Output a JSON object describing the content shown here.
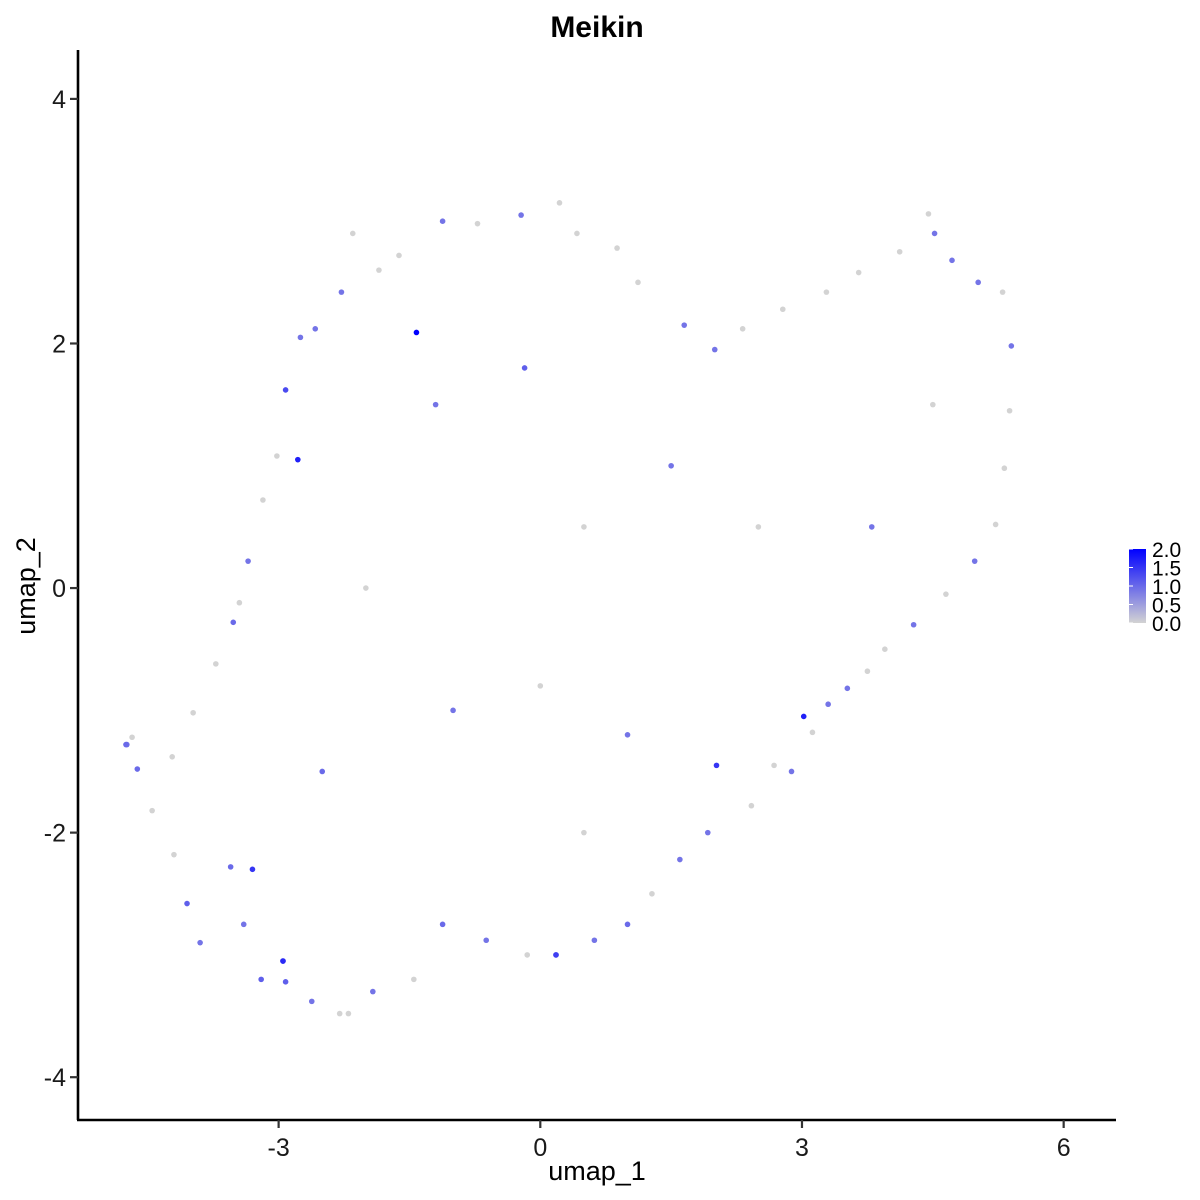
{
  "chart_data": {
    "type": "scatter",
    "title": "Meikin",
    "xlabel": "umap_1",
    "ylabel": "umap_2",
    "xlim": [
      -5.3,
      6.6
    ],
    "ylim": [
      -4.35,
      4.4
    ],
    "x_ticks": [
      -3,
      0,
      3,
      6
    ],
    "x_tick_labels": [
      "-3",
      "0",
      "3",
      "6"
    ],
    "y_ticks": [
      -4,
      -2,
      0,
      2,
      4
    ],
    "y_tick_labels": [
      "-4",
      "-2",
      "0",
      "2",
      "4"
    ],
    "grid": false,
    "color_scale": {
      "low_color": "#d3d3d3",
      "high_color": "#0000ff",
      "min": 0.0,
      "max": 2.0,
      "legend_placement": "right",
      "legend_ticks": [
        2.0,
        1.5,
        1.0,
        0.5,
        0.0
      ],
      "legend_tick_labels": [
        "2.0",
        "1.5",
        "1.0",
        "0.5",
        "0.0"
      ]
    },
    "points": [
      {
        "x": -4.74,
        "y": -1.28,
        "v": 0.9
      },
      {
        "x": -4.68,
        "y": -1.22,
        "v": 0.0
      },
      {
        "x": -4.62,
        "y": -1.48,
        "v": 1.0
      },
      {
        "x": -4.45,
        "y": -1.82,
        "v": 0.0
      },
      {
        "x": -4.2,
        "y": -2.18,
        "v": 0.0
      },
      {
        "x": -4.05,
        "y": -2.58,
        "v": 1.1
      },
      {
        "x": -3.9,
        "y": -2.9,
        "v": 0.9
      },
      {
        "x": -3.55,
        "y": -2.28,
        "v": 1.0
      },
      {
        "x": -3.4,
        "y": -2.75,
        "v": 0.9
      },
      {
        "x": -3.2,
        "y": -3.2,
        "v": 1.1
      },
      {
        "x": -2.95,
        "y": -3.05,
        "v": 1.3
      },
      {
        "x": -2.92,
        "y": -3.22,
        "v": 1.1
      },
      {
        "x": -2.62,
        "y": -3.38,
        "v": 0.9
      },
      {
        "x": -2.3,
        "y": -3.48,
        "v": 0.0
      },
      {
        "x": -2.2,
        "y": -3.48,
        "v": 0.0
      },
      {
        "x": -1.92,
        "y": -3.3,
        "v": 0.9
      },
      {
        "x": -1.45,
        "y": -3.2,
        "v": 0.0
      },
      {
        "x": -1.12,
        "y": -2.75,
        "v": 1.0
      },
      {
        "x": -0.62,
        "y": -2.88,
        "v": 0.9
      },
      {
        "x": -0.15,
        "y": -3.0,
        "v": 0.0
      },
      {
        "x": 0.18,
        "y": -3.0,
        "v": 1.1
      },
      {
        "x": 0.62,
        "y": -2.88,
        "v": 0.9
      },
      {
        "x": 1.0,
        "y": -2.75,
        "v": 1.0
      },
      {
        "x": 1.28,
        "y": -2.5,
        "v": 0.0
      },
      {
        "x": 1.6,
        "y": -2.22,
        "v": 0.9
      },
      {
        "x": 1.92,
        "y": -2.0,
        "v": 0.9
      },
      {
        "x": 2.42,
        "y": -1.78,
        "v": 0.0
      },
      {
        "x": 2.68,
        "y": -1.45,
        "v": 0.0
      },
      {
        "x": 2.88,
        "y": -1.5,
        "v": 0.9
      },
      {
        "x": 3.12,
        "y": -1.18,
        "v": 0.0
      },
      {
        "x": 3.3,
        "y": -0.95,
        "v": 0.9
      },
      {
        "x": 3.52,
        "y": -0.82,
        "v": 0.9
      },
      {
        "x": 3.75,
        "y": -0.68,
        "v": 0.0
      },
      {
        "x": 3.95,
        "y": -0.5,
        "v": 0.0
      },
      {
        "x": 4.28,
        "y": -0.3,
        "v": 0.9
      },
      {
        "x": 4.65,
        "y": -0.05,
        "v": 0.0
      },
      {
        "x": 4.98,
        "y": 0.22,
        "v": 0.9
      },
      {
        "x": 5.22,
        "y": 0.52,
        "v": 0.0
      },
      {
        "x": 5.32,
        "y": 0.98,
        "v": 0.0
      },
      {
        "x": 5.38,
        "y": 1.45,
        "v": 0.0
      },
      {
        "x": 5.4,
        "y": 1.98,
        "v": 0.9
      },
      {
        "x": 5.3,
        "y": 2.42,
        "v": 0.0
      },
      {
        "x": 5.02,
        "y": 2.5,
        "v": 0.9
      },
      {
        "x": 4.72,
        "y": 2.68,
        "v": 0.9
      },
      {
        "x": 4.52,
        "y": 2.9,
        "v": 0.9
      },
      {
        "x": 4.45,
        "y": 3.06,
        "v": 0.0
      },
      {
        "x": 4.12,
        "y": 2.75,
        "v": 0.0
      },
      {
        "x": 3.65,
        "y": 2.58,
        "v": 0.0
      },
      {
        "x": 3.28,
        "y": 2.42,
        "v": 0.0
      },
      {
        "x": 2.78,
        "y": 2.28,
        "v": 0.0
      },
      {
        "x": 2.32,
        "y": 2.12,
        "v": 0.0
      },
      {
        "x": 1.65,
        "y": 2.15,
        "v": 0.9
      },
      {
        "x": 1.12,
        "y": 2.5,
        "v": 0.0
      },
      {
        "x": 0.88,
        "y": 2.78,
        "v": 0.0
      },
      {
        "x": 0.42,
        "y": 2.9,
        "v": 0.0
      },
      {
        "x": 0.22,
        "y": 3.15,
        "v": 0.0
      },
      {
        "x": -0.22,
        "y": 3.05,
        "v": 0.9
      },
      {
        "x": -0.72,
        "y": 2.98,
        "v": 0.0
      },
      {
        "x": -1.12,
        "y": 3.0,
        "v": 0.9
      },
      {
        "x": -1.62,
        "y": 2.72,
        "v": 0.0
      },
      {
        "x": -1.85,
        "y": 2.6,
        "v": 0.0
      },
      {
        "x": -2.15,
        "y": 2.9,
        "v": 0.0
      },
      {
        "x": -2.28,
        "y": 2.42,
        "v": 0.9
      },
      {
        "x": -2.58,
        "y": 2.12,
        "v": 0.9
      },
      {
        "x": -2.75,
        "y": 2.05,
        "v": 0.9
      },
      {
        "x": -2.92,
        "y": 1.62,
        "v": 1.3
      },
      {
        "x": -3.02,
        "y": 1.08,
        "v": 0.0
      },
      {
        "x": -3.18,
        "y": 0.72,
        "v": 0.0
      },
      {
        "x": -3.35,
        "y": 0.22,
        "v": 0.9
      },
      {
        "x": -3.45,
        "y": -0.12,
        "v": 0.0
      },
      {
        "x": -3.52,
        "y": -0.28,
        "v": 1.0
      },
      {
        "x": -3.72,
        "y": -0.62,
        "v": 0.0
      },
      {
        "x": -3.98,
        "y": -1.02,
        "v": 0.0
      },
      {
        "x": -4.22,
        "y": -1.38,
        "v": 0.0
      },
      {
        "x": -1.42,
        "y": 2.09,
        "v": 2.0
      },
      {
        "x": -2.78,
        "y": 1.05,
        "v": 1.7
      },
      {
        "x": -0.18,
        "y": 1.8,
        "v": 1.1
      },
      {
        "x": 3.02,
        "y": -1.05,
        "v": 1.7
      },
      {
        "x": 2.02,
        "y": -1.45,
        "v": 1.5
      },
      {
        "x": 0.18,
        "y": -3.0,
        "v": 1.4
      },
      {
        "x": -3.3,
        "y": -2.3,
        "v": 1.5
      },
      {
        "x": -2.95,
        "y": -3.05,
        "v": 1.6
      },
      {
        "x": -4.75,
        "y": -1.28,
        "v": 1.0
      },
      {
        "x": -1.2,
        "y": 1.5,
        "v": 0.9
      },
      {
        "x": 0.5,
        "y": 0.5,
        "v": 0.0
      },
      {
        "x": 1.5,
        "y": 1.0,
        "v": 0.9
      },
      {
        "x": 2.5,
        "y": 0.5,
        "v": 0.0
      },
      {
        "x": -1.0,
        "y": -1.0,
        "v": 0.9
      },
      {
        "x": 0.0,
        "y": -0.8,
        "v": 0.0
      },
      {
        "x": 1.0,
        "y": -1.2,
        "v": 0.9
      },
      {
        "x": -2.0,
        "y": 0.0,
        "v": 0.0
      },
      {
        "x": -2.5,
        "y": -1.5,
        "v": 1.0
      },
      {
        "x": 0.5,
        "y": -2.0,
        "v": 0.0
      },
      {
        "x": 3.8,
        "y": 0.5,
        "v": 0.9
      },
      {
        "x": 4.5,
        "y": 1.5,
        "v": 0.0
      },
      {
        "x": 2.0,
        "y": 1.95,
        "v": 0.9
      }
    ]
  }
}
